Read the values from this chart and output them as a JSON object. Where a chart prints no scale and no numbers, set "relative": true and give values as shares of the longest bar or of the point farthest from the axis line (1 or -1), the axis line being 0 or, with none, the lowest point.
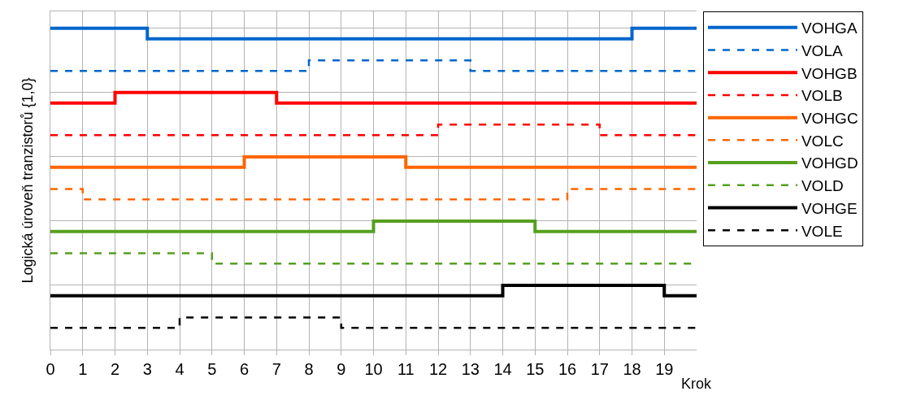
{
  "chart_data": {
    "type": "step",
    "relative": true,
    "xlabel": "Krok",
    "ylabel": "Logická úroveň tranzistorů {1,0}",
    "x": [
      0,
      1,
      2,
      3,
      4,
      5,
      6,
      7,
      8,
      9,
      10,
      11,
      12,
      13,
      14,
      15,
      16,
      17,
      18,
      19,
      20
    ],
    "xlim": [
      0,
      20
    ],
    "xticks": [
      0,
      1,
      2,
      3,
      4,
      5,
      6,
      7,
      8,
      9,
      10,
      11,
      12,
      13,
      14,
      15,
      16,
      17,
      18,
      19
    ],
    "grid": true,
    "legend": "right",
    "marker": "none",
    "series": [
      {
        "name": "VOHGA",
        "color": "#0066cc",
        "line_style": "solid",
        "values": [
          1,
          1,
          1,
          0.9675,
          0.9675,
          0.9675,
          0.9675,
          0.9675,
          0.9675,
          0.9675,
          0.9675,
          0.9675,
          0.9675,
          0.9675,
          0.9675,
          0.9675,
          0.9675,
          0.9675,
          1,
          1,
          1
        ]
      },
      {
        "name": "VOLA",
        "color": "#0066cc",
        "line_style": "dashed",
        "values": [
          0.8675,
          0.8675,
          0.8675,
          0.8675,
          0.8675,
          0.8675,
          0.8675,
          0.8675,
          0.9,
          0.9,
          0.9,
          0.9,
          0.9,
          0.8675,
          0.8675,
          0.8675,
          0.8675,
          0.8675,
          0.8675,
          0.8675,
          0.8675
        ]
      },
      {
        "name": "VOHGB",
        "color": "#ff0000",
        "line_style": "solid",
        "values": [
          0.7675,
          0.7675,
          0.8,
          0.8,
          0.8,
          0.8,
          0.8,
          0.7675,
          0.7675,
          0.7675,
          0.7675,
          0.7675,
          0.7675,
          0.7675,
          0.7675,
          0.7675,
          0.7675,
          0.7675,
          0.7675,
          0.7675,
          0.7675
        ]
      },
      {
        "name": "VOLB",
        "color": "#ff0000",
        "line_style": "dashed",
        "values": [
          0.6675,
          0.6675,
          0.6675,
          0.6675,
          0.6675,
          0.6675,
          0.6675,
          0.6675,
          0.6675,
          0.6675,
          0.6675,
          0.6675,
          0.7,
          0.7,
          0.7,
          0.7,
          0.7,
          0.6675,
          0.6675,
          0.6675,
          0.6675
        ]
      },
      {
        "name": "VOHGC",
        "color": "#ff6600",
        "line_style": "solid",
        "values": [
          0.5675,
          0.5675,
          0.5675,
          0.5675,
          0.5675,
          0.5675,
          0.6,
          0.6,
          0.6,
          0.6,
          0.6,
          0.5675,
          0.5675,
          0.5675,
          0.5675,
          0.5675,
          0.5675,
          0.5675,
          0.5675,
          0.5675,
          0.5675
        ]
      },
      {
        "name": "VOLC",
        "color": "#ff6600",
        "line_style": "dashed",
        "values": [
          0.5,
          0.4675,
          0.4675,
          0.4675,
          0.4675,
          0.4675,
          0.4675,
          0.4675,
          0.4675,
          0.4675,
          0.4675,
          0.4675,
          0.4675,
          0.4675,
          0.4675,
          0.4675,
          0.5,
          0.5,
          0.5,
          0.5,
          0.5
        ]
      },
      {
        "name": "VOHGD",
        "color": "#55a01e",
        "line_style": "solid",
        "values": [
          0.3675,
          0.3675,
          0.3675,
          0.3675,
          0.3675,
          0.3675,
          0.3675,
          0.3675,
          0.3675,
          0.3675,
          0.4,
          0.4,
          0.4,
          0.4,
          0.4,
          0.3675,
          0.3675,
          0.3675,
          0.3675,
          0.3675,
          0.3675
        ]
      },
      {
        "name": "VOLD",
        "color": "#55a01e",
        "line_style": "dashed",
        "values": [
          0.3,
          0.3,
          0.3,
          0.3,
          0.3,
          0.2675,
          0.2675,
          0.2675,
          0.2675,
          0.2675,
          0.2675,
          0.2675,
          0.2675,
          0.2675,
          0.2675,
          0.2675,
          0.2675,
          0.2675,
          0.2675,
          0.2675,
          0.2675
        ]
      },
      {
        "name": "VOHGE",
        "color": "#000000",
        "line_style": "solid",
        "values": [
          0.1675,
          0.1675,
          0.1675,
          0.1675,
          0.1675,
          0.1675,
          0.1675,
          0.1675,
          0.1675,
          0.1675,
          0.1675,
          0.1675,
          0.1675,
          0.1675,
          0.2,
          0.2,
          0.2,
          0.2,
          0.2,
          0.1675,
          0.1675
        ]
      },
      {
        "name": "VOLE",
        "color": "#000000",
        "line_style": "dashed",
        "values": [
          0.0675,
          0.0675,
          0.0675,
          0.0675,
          0.1,
          0.1,
          0.1,
          0.1,
          0.1,
          0.0675,
          0.0675,
          0.0675,
          0.0675,
          0.0675,
          0.0675,
          0.0675,
          0.0675,
          0.0675,
          0.0675,
          0.0675,
          0.0675
        ]
      }
    ]
  }
}
